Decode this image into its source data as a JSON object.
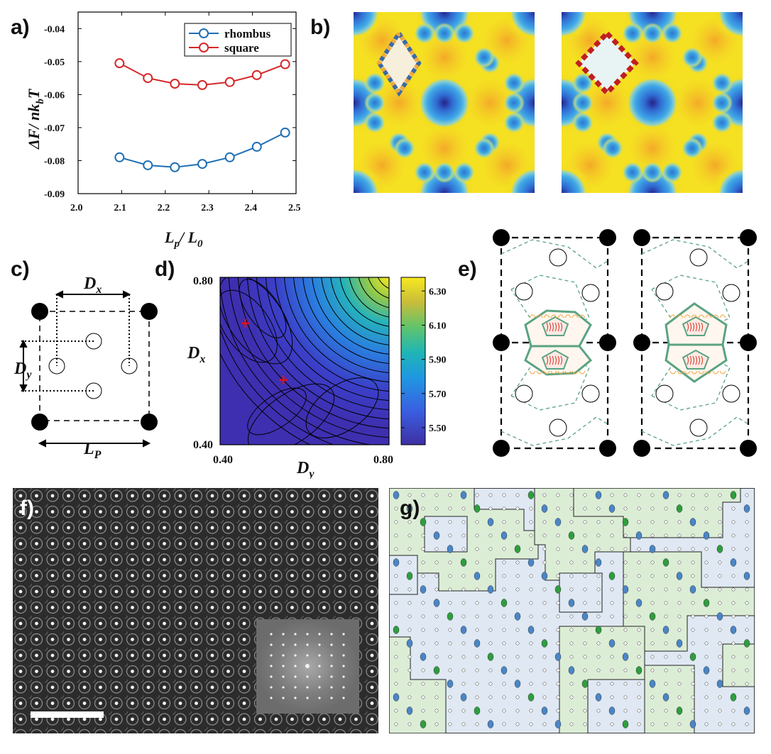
{
  "labels": {
    "a": "a)",
    "b": "b)",
    "c": "c)",
    "d": "d)",
    "e": "e)",
    "f": "f)",
    "g": "g)"
  },
  "panel_a": {
    "ylabel": "ΔF/ nk",
    "ylabel_sub": "b",
    "ylabel_tail": "T",
    "xlabel_main": "L",
    "xlabel_sub": "p",
    "xlabel_mid": "/ L",
    "xlabel_sub2": "0",
    "legend": [
      "rhombus",
      "square"
    ],
    "colors": {
      "rhombus": "#1f6fb5",
      "square": "#d62728"
    }
  },
  "chart_data": [
    {
      "type": "line",
      "xlim": [
        2.0,
        2.5
      ],
      "ylim": [
        -0.09,
        -0.035
      ],
      "xticks": [
        "2.0",
        "2.1",
        "2.2",
        "2.3",
        "2.4",
        "2.5"
      ],
      "yticks": [
        "-0.04",
        "-0.05",
        "-0.06",
        "-0.07",
        "-0.08",
        "-0.09"
      ],
      "xlabel": "Lp / L0",
      "ylabel": "ΔF/ nkbT",
      "legend_position": "top-right",
      "grid": false,
      "series": [
        {
          "name": "rhombus",
          "x": [
            2.095,
            2.16,
            2.222,
            2.285,
            2.348,
            2.41,
            2.475
          ],
          "values": [
            -0.079,
            -0.0814,
            -0.082,
            -0.081,
            -0.079,
            -0.0758,
            -0.0715
          ]
        },
        {
          "name": "square",
          "x": [
            2.095,
            2.16,
            2.222,
            2.285,
            2.348,
            2.41,
            2.475
          ],
          "values": [
            -0.0505,
            -0.055,
            -0.0567,
            -0.0571,
            -0.0562,
            -0.0541,
            -0.0508
          ]
        }
      ]
    },
    {
      "type": "heatmap",
      "xlim": [
        0.4,
        0.8
      ],
      "ylim": [
        0.4,
        0.8
      ],
      "xticks": [
        "0.40",
        "0.80"
      ],
      "yticks": [
        "0.40",
        "0.80"
      ],
      "xlabel": "Dy",
      "ylabel": "Dx",
      "colorbar_ticks": [
        "6.30",
        "6.10",
        "5.90",
        "5.70",
        "5.50"
      ],
      "colorbar_range": [
        5.4,
        6.38
      ],
      "markers": [
        {
          "x": 0.46,
          "y": 0.69
        },
        {
          "x": 0.55,
          "y": 0.555
        }
      ]
    }
  ],
  "panel_c": {
    "dx": "D",
    "dx_sub": "x",
    "dy": "D",
    "dy_sub": "y",
    "lp": "L",
    "lp_sub": "P"
  },
  "panel_d": {
    "xlabel": "D",
    "xlabel_sub": "y",
    "ylabel": "D",
    "ylabel_sub": "x"
  },
  "colors": {
    "yellow": "#f3dd22",
    "blue": "#2f7bd4",
    "dark_blue": "#2b2f96",
    "green": "#5aa383",
    "orange": "#f1a33a",
    "red": "#d7301f"
  }
}
